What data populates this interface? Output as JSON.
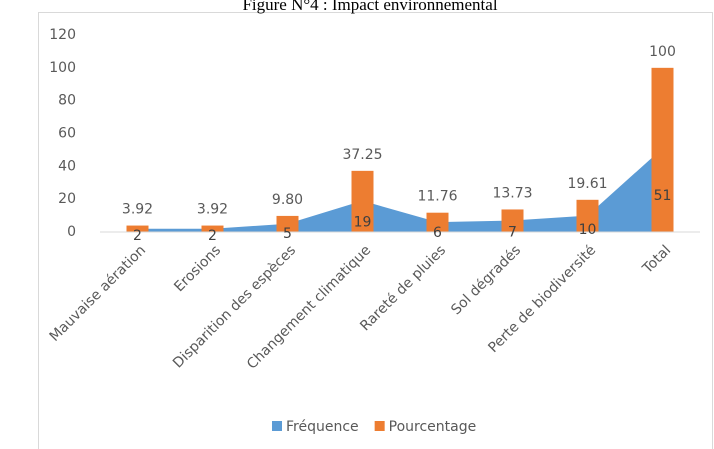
{
  "chart_data": {
    "type": "bar",
    "title": "Figure N°4 : Impact environnemental",
    "categories": [
      "Mauvaise aération",
      "Erosions",
      "Disparition des espèces",
      "Changement climatique",
      "Rareté de pluies",
      "Sol dégradés",
      "Perte de biodiversité",
      "Total"
    ],
    "series": [
      {
        "name": "Fréquence",
        "color": "#5b9bd5",
        "kind": "area",
        "values": [
          2,
          2,
          5,
          19,
          6,
          7,
          10,
          51
        ]
      },
      {
        "name": "Pourcentage",
        "color": "#ed7d31",
        "kind": "bar",
        "values": [
          3.92,
          3.92,
          9.8,
          37.25,
          11.76,
          13.73,
          19.61,
          100
        ],
        "value_labels": [
          "3.92",
          "3.92",
          "9.80",
          "37.25",
          "11.76",
          "13.73",
          "19.61",
          "100"
        ]
      }
    ],
    "ylim": [
      0,
      120
    ],
    "yticks": [
      0,
      20,
      40,
      60,
      80,
      100,
      120
    ],
    "grid": false,
    "legend": "bottom"
  }
}
